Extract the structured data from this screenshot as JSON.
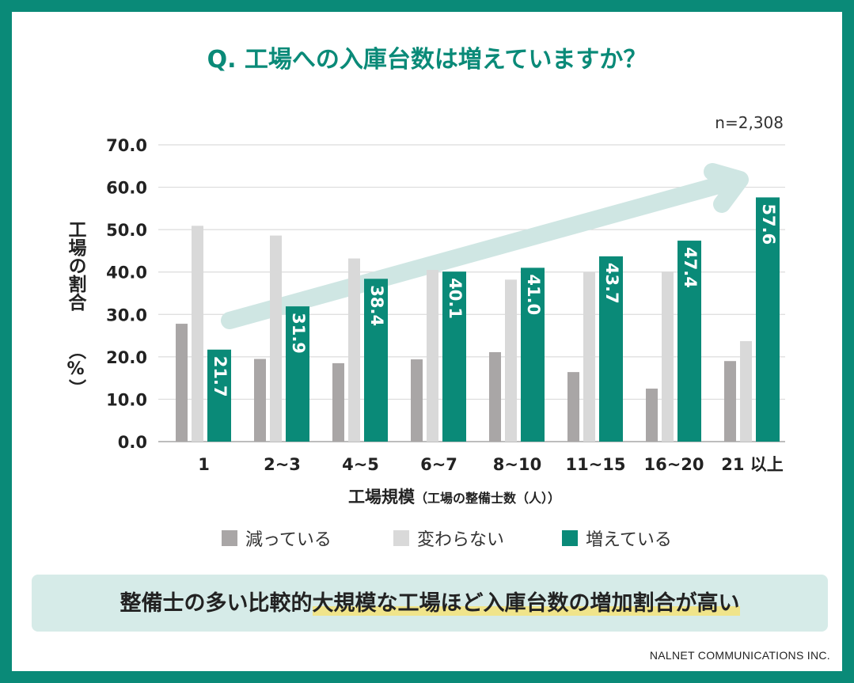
{
  "title": "Q. 工場への入庫台数は増えていますか？",
  "sample_size": "n=2,308",
  "footer": "NALNET COMMUNICATIONS INC.",
  "summary": {
    "pre": "整備士の多い比較的",
    "highlight1": "大規模な工場ほど",
    "highlight2": "入庫台数の増加割合が高い"
  },
  "colors": {
    "brand": "#0a8a78",
    "decreasing": "#a9a6a6",
    "unchanged": "#d9d9d9",
    "increasing": "#0a8a78",
    "banner": "#d6ebe8",
    "arrow": "#cfe6e3"
  },
  "chart_data": {
    "type": "bar",
    "title": "Q. 工場への入庫台数は増えていますか？",
    "xlabel": "工場規模",
    "xlabel_sub": "（工場の整備士数（人））",
    "ylabel": "工場の割合",
    "ylabel_unit": "（%）",
    "ylim": [
      0,
      70
    ],
    "yticks": [
      "0.0",
      "10.0",
      "20.0",
      "30.0",
      "40.0",
      "50.0",
      "60.0",
      "70.0"
    ],
    "grid": true,
    "legend_position": "bottom",
    "categories": [
      "1",
      "2~3",
      "4~5",
      "6~7",
      "8~10",
      "11~15",
      "16~20",
      "21 以上"
    ],
    "series": [
      {
        "name": "減っている",
        "color": "#a9a6a6",
        "values": [
          27.8,
          19.5,
          18.5,
          19.4,
          21.1,
          16.4,
          12.5,
          19.0
        ]
      },
      {
        "name": "変わらない",
        "color": "#d9d9d9",
        "values": [
          50.9,
          48.6,
          43.2,
          40.5,
          38.2,
          40.0,
          40.1,
          23.7
        ]
      },
      {
        "name": "増えている",
        "color": "#0a8a78",
        "values": [
          21.7,
          31.9,
          38.4,
          40.1,
          41.0,
          43.7,
          47.4,
          57.6
        ],
        "labels": [
          "21.7",
          "31.9",
          "38.4",
          "40.1",
          "41.0",
          "43.7",
          "47.4",
          "57.6"
        ]
      }
    ]
  }
}
